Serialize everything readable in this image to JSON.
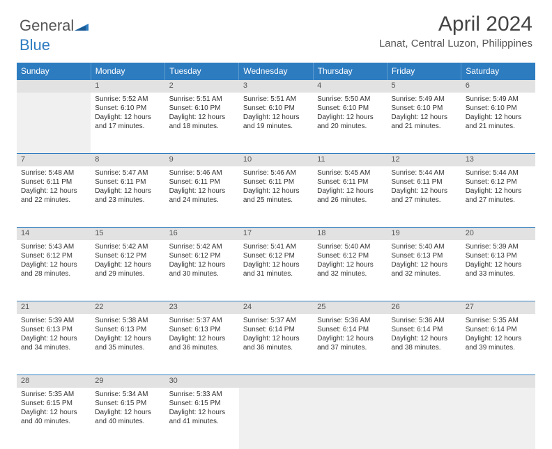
{
  "brand": {
    "part1": "General",
    "part2": "Blue"
  },
  "title": "April 2024",
  "location": "Lanat, Central Luzon, Philippines",
  "colors": {
    "header_bg": "#2e7cc0",
    "header_text": "#ffffff",
    "daynum_bg": "#e2e2e2",
    "row_divider": "#2e7cc0",
    "empty_cell": "#f0f0f0",
    "logo_blue": "#2e7cc0",
    "logo_gray": "#555555"
  },
  "typography": {
    "month_title_fontsize": 30,
    "location_fontsize": 15,
    "dayname_fontsize": 12,
    "daynum_fontsize": 11,
    "body_fontsize": 10
  },
  "day_names": [
    "Sunday",
    "Monday",
    "Tuesday",
    "Wednesday",
    "Thursday",
    "Friday",
    "Saturday"
  ],
  "weeks": [
    [
      null,
      {
        "n": "1",
        "sr": "Sunrise: 5:52 AM",
        "ss": "Sunset: 6:10 PM",
        "d1": "Daylight: 12 hours",
        "d2": "and 17 minutes."
      },
      {
        "n": "2",
        "sr": "Sunrise: 5:51 AM",
        "ss": "Sunset: 6:10 PM",
        "d1": "Daylight: 12 hours",
        "d2": "and 18 minutes."
      },
      {
        "n": "3",
        "sr": "Sunrise: 5:51 AM",
        "ss": "Sunset: 6:10 PM",
        "d1": "Daylight: 12 hours",
        "d2": "and 19 minutes."
      },
      {
        "n": "4",
        "sr": "Sunrise: 5:50 AM",
        "ss": "Sunset: 6:10 PM",
        "d1": "Daylight: 12 hours",
        "d2": "and 20 minutes."
      },
      {
        "n": "5",
        "sr": "Sunrise: 5:49 AM",
        "ss": "Sunset: 6:10 PM",
        "d1": "Daylight: 12 hours",
        "d2": "and 21 minutes."
      },
      {
        "n": "6",
        "sr": "Sunrise: 5:49 AM",
        "ss": "Sunset: 6:10 PM",
        "d1": "Daylight: 12 hours",
        "d2": "and 21 minutes."
      }
    ],
    [
      {
        "n": "7",
        "sr": "Sunrise: 5:48 AM",
        "ss": "Sunset: 6:11 PM",
        "d1": "Daylight: 12 hours",
        "d2": "and 22 minutes."
      },
      {
        "n": "8",
        "sr": "Sunrise: 5:47 AM",
        "ss": "Sunset: 6:11 PM",
        "d1": "Daylight: 12 hours",
        "d2": "and 23 minutes."
      },
      {
        "n": "9",
        "sr": "Sunrise: 5:46 AM",
        "ss": "Sunset: 6:11 PM",
        "d1": "Daylight: 12 hours",
        "d2": "and 24 minutes."
      },
      {
        "n": "10",
        "sr": "Sunrise: 5:46 AM",
        "ss": "Sunset: 6:11 PM",
        "d1": "Daylight: 12 hours",
        "d2": "and 25 minutes."
      },
      {
        "n": "11",
        "sr": "Sunrise: 5:45 AM",
        "ss": "Sunset: 6:11 PM",
        "d1": "Daylight: 12 hours",
        "d2": "and 26 minutes."
      },
      {
        "n": "12",
        "sr": "Sunrise: 5:44 AM",
        "ss": "Sunset: 6:11 PM",
        "d1": "Daylight: 12 hours",
        "d2": "and 27 minutes."
      },
      {
        "n": "13",
        "sr": "Sunrise: 5:44 AM",
        "ss": "Sunset: 6:12 PM",
        "d1": "Daylight: 12 hours",
        "d2": "and 27 minutes."
      }
    ],
    [
      {
        "n": "14",
        "sr": "Sunrise: 5:43 AM",
        "ss": "Sunset: 6:12 PM",
        "d1": "Daylight: 12 hours",
        "d2": "and 28 minutes."
      },
      {
        "n": "15",
        "sr": "Sunrise: 5:42 AM",
        "ss": "Sunset: 6:12 PM",
        "d1": "Daylight: 12 hours",
        "d2": "and 29 minutes."
      },
      {
        "n": "16",
        "sr": "Sunrise: 5:42 AM",
        "ss": "Sunset: 6:12 PM",
        "d1": "Daylight: 12 hours",
        "d2": "and 30 minutes."
      },
      {
        "n": "17",
        "sr": "Sunrise: 5:41 AM",
        "ss": "Sunset: 6:12 PM",
        "d1": "Daylight: 12 hours",
        "d2": "and 31 minutes."
      },
      {
        "n": "18",
        "sr": "Sunrise: 5:40 AM",
        "ss": "Sunset: 6:12 PM",
        "d1": "Daylight: 12 hours",
        "d2": "and 32 minutes."
      },
      {
        "n": "19",
        "sr": "Sunrise: 5:40 AM",
        "ss": "Sunset: 6:13 PM",
        "d1": "Daylight: 12 hours",
        "d2": "and 32 minutes."
      },
      {
        "n": "20",
        "sr": "Sunrise: 5:39 AM",
        "ss": "Sunset: 6:13 PM",
        "d1": "Daylight: 12 hours",
        "d2": "and 33 minutes."
      }
    ],
    [
      {
        "n": "21",
        "sr": "Sunrise: 5:39 AM",
        "ss": "Sunset: 6:13 PM",
        "d1": "Daylight: 12 hours",
        "d2": "and 34 minutes."
      },
      {
        "n": "22",
        "sr": "Sunrise: 5:38 AM",
        "ss": "Sunset: 6:13 PM",
        "d1": "Daylight: 12 hours",
        "d2": "and 35 minutes."
      },
      {
        "n": "23",
        "sr": "Sunrise: 5:37 AM",
        "ss": "Sunset: 6:13 PM",
        "d1": "Daylight: 12 hours",
        "d2": "and 36 minutes."
      },
      {
        "n": "24",
        "sr": "Sunrise: 5:37 AM",
        "ss": "Sunset: 6:14 PM",
        "d1": "Daylight: 12 hours",
        "d2": "and 36 minutes."
      },
      {
        "n": "25",
        "sr": "Sunrise: 5:36 AM",
        "ss": "Sunset: 6:14 PM",
        "d1": "Daylight: 12 hours",
        "d2": "and 37 minutes."
      },
      {
        "n": "26",
        "sr": "Sunrise: 5:36 AM",
        "ss": "Sunset: 6:14 PM",
        "d1": "Daylight: 12 hours",
        "d2": "and 38 minutes."
      },
      {
        "n": "27",
        "sr": "Sunrise: 5:35 AM",
        "ss": "Sunset: 6:14 PM",
        "d1": "Daylight: 12 hours",
        "d2": "and 39 minutes."
      }
    ],
    [
      {
        "n": "28",
        "sr": "Sunrise: 5:35 AM",
        "ss": "Sunset: 6:15 PM",
        "d1": "Daylight: 12 hours",
        "d2": "and 40 minutes."
      },
      {
        "n": "29",
        "sr": "Sunrise: 5:34 AM",
        "ss": "Sunset: 6:15 PM",
        "d1": "Daylight: 12 hours",
        "d2": "and 40 minutes."
      },
      {
        "n": "30",
        "sr": "Sunrise: 5:33 AM",
        "ss": "Sunset: 6:15 PM",
        "d1": "Daylight: 12 hours",
        "d2": "and 41 minutes."
      },
      null,
      null,
      null,
      null
    ]
  ]
}
